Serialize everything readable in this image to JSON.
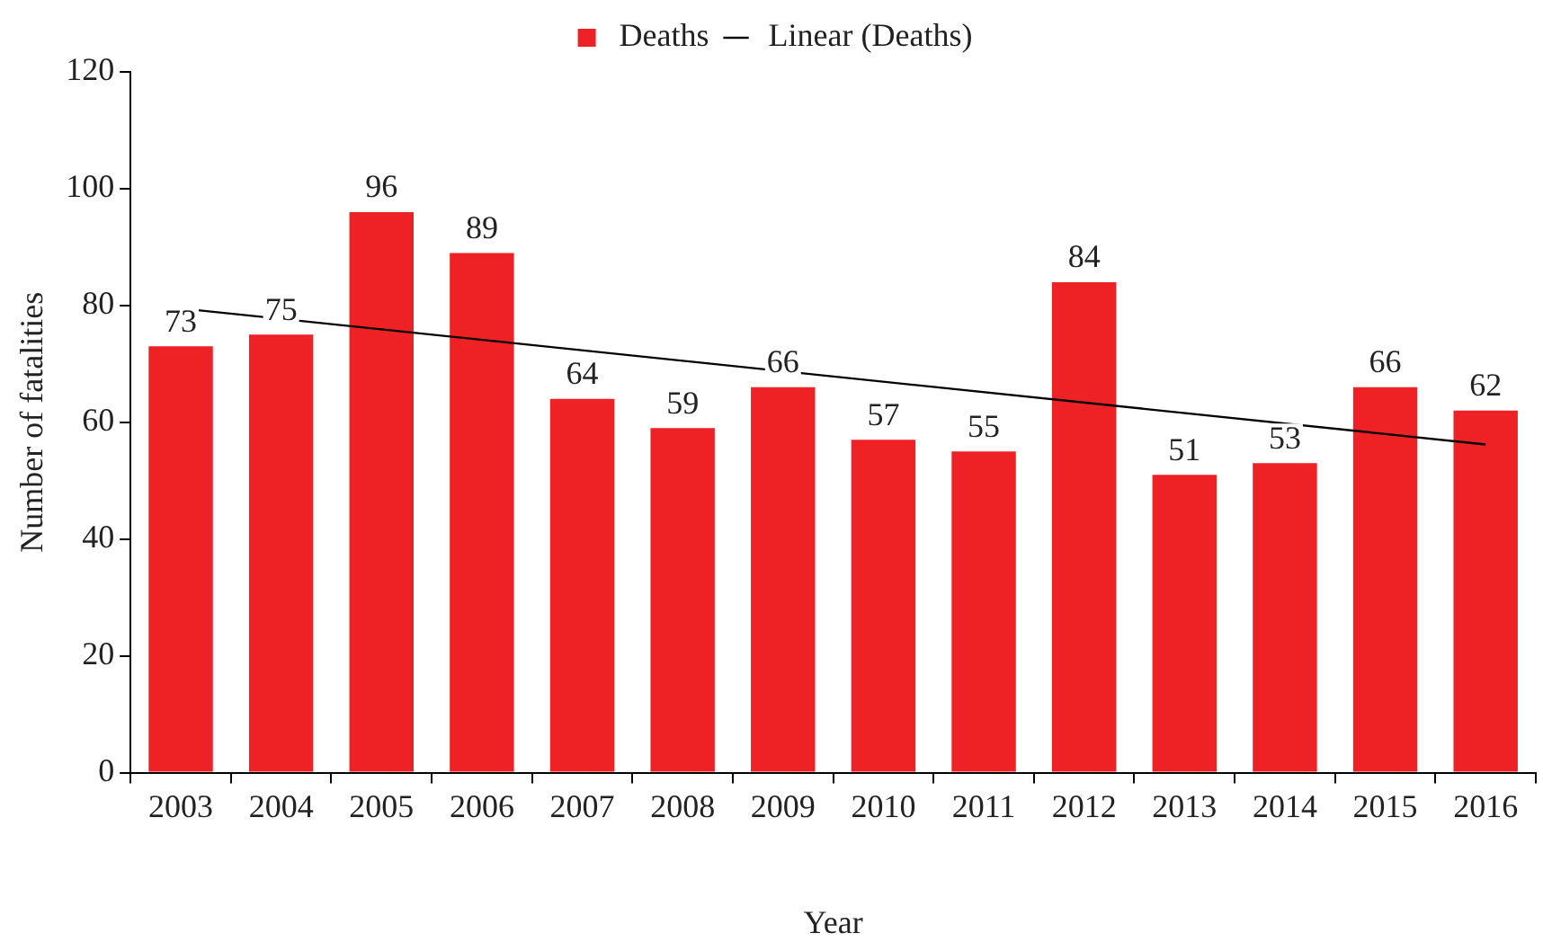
{
  "chart_data": {
    "type": "bar",
    "xlabel": "Year",
    "ylabel": "Number of fatalities",
    "categories": [
      "2003",
      "2004",
      "2005",
      "2006",
      "2007",
      "2008",
      "2009",
      "2010",
      "2011",
      "2012",
      "2013",
      "2014",
      "2015",
      "2016"
    ],
    "series": [
      {
        "name": "Deaths",
        "color": "#ee2124",
        "values": [
          73,
          75,
          96,
          89,
          64,
          59,
          66,
          57,
          55,
          84,
          51,
          53,
          66,
          62
        ],
        "value_labels": [
          "73",
          "75",
          "96",
          "89",
          "64",
          "59",
          "66",
          "57",
          "55",
          "84",
          "51",
          "53",
          "66",
          "62"
        ]
      },
      {
        "name": "Linear (Deaths)",
        "type": "line",
        "color": "#000000",
        "values": [
          79.5,
          null,
          null,
          null,
          null,
          null,
          null,
          null,
          null,
          null,
          null,
          null,
          null,
          56.2
        ]
      }
    ],
    "ylim": [
      0,
      120
    ],
    "yticks": [
      0,
      20,
      40,
      60,
      80,
      100,
      120
    ],
    "legend": "top",
    "marker": "none",
    "line_style": "solid"
  }
}
